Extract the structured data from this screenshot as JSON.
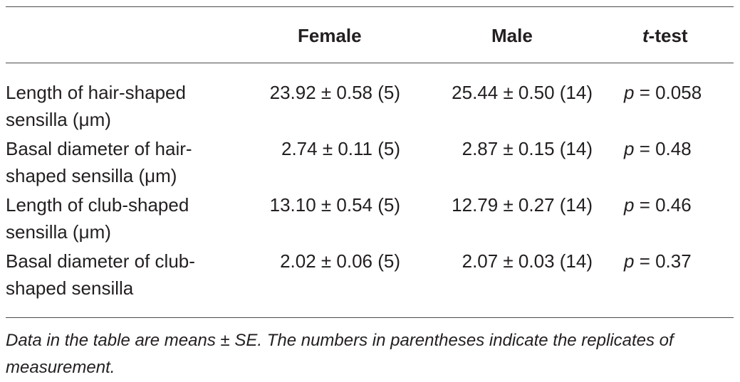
{
  "table": {
    "headers": {
      "female": "Female",
      "male": "Male",
      "ttest_italic": "t",
      "ttest_rest": "-test"
    },
    "rows": [
      {
        "label": "Length of hair-shaped sensilla (μm)",
        "female": "23.92 ± 0.58 (5)",
        "male": "25.44 ± 0.50 (14)",
        "p_symbol": "p",
        "p_value": " = 0.058"
      },
      {
        "label": "Basal diameter of hair-shaped sensilla (μm)",
        "female": "2.74 ± 0.11 (5)",
        "male": "2.87 ± 0.15 (14)",
        "p_symbol": "p",
        "p_value": " = 0.48"
      },
      {
        "label": "Length of club-shaped sensilla (μm)",
        "female": "13.10 ± 0.54 (5)",
        "male": "12.79 ± 0.27 (14)",
        "p_symbol": "p",
        "p_value": " = 0.46"
      },
      {
        "label": "Basal diameter of club-shaped sensilla",
        "female": "2.02 ± 0.06 (5)",
        "male": "2.07 ± 0.03 (14)",
        "p_symbol": "p",
        "p_value": " = 0.37"
      }
    ],
    "footnote": "Data in the table are means ± SE. The numbers in parentheses indicate the replicates of measurement."
  }
}
